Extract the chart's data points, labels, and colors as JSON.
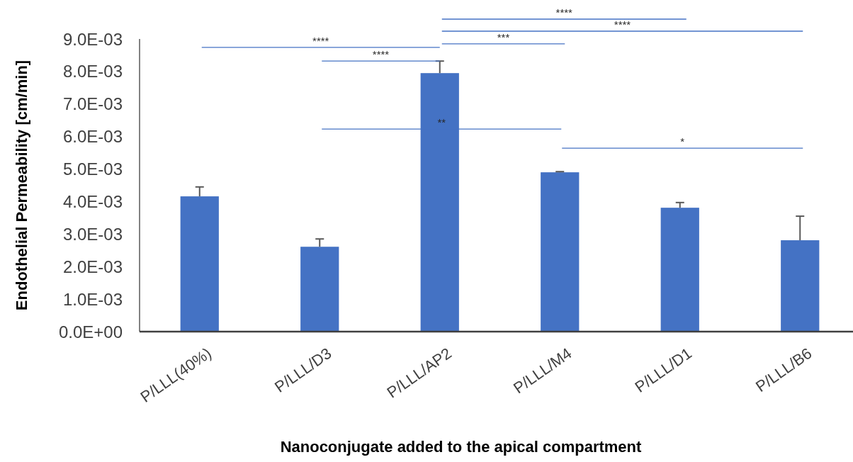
{
  "chart_data": {
    "type": "bar",
    "xlabel": "Nanoconjugate added to the apical compartment",
    "ylabel": "Endothelial Permeability [cm/min]",
    "categories": [
      "P/LLL(40%)",
      "P/LLL/D3",
      "P/LLL/AP2",
      "P/LLL/M4",
      "P/LLL/D1",
      "P/LLL/B6"
    ],
    "values": [
      0.00416,
      0.00261,
      0.00795,
      0.0049,
      0.00381,
      0.00281
    ],
    "errors": [
      0.00029,
      0.00024,
      0.00037,
      2e-05,
      0.00016,
      0.00074
    ],
    "color": "#4472c4",
    "ylim": [
      0,
      0.009
    ],
    "yticks": [
      {
        "value": 0,
        "label": "0.0E+00"
      },
      {
        "value": 0.001,
        "label": "1.0E-03"
      },
      {
        "value": 0.002,
        "label": "2.0E-03"
      },
      {
        "value": 0.003,
        "label": "3.0E-03"
      },
      {
        "value": 0.004,
        "label": "4.0E-03"
      },
      {
        "value": 0.005,
        "label": "5.0E-03"
      },
      {
        "value": 0.006,
        "label": "6.0E-03"
      },
      {
        "value": 0.007,
        "label": "7.0E-03"
      },
      {
        "value": 0.008,
        "label": "8.0E-03"
      },
      {
        "value": 0.009,
        "label": "9.0E-03"
      }
    ],
    "annotations": [
      "****",
      "****",
      "***",
      "****",
      "****",
      "**",
      "*"
    ],
    "grid": false
  }
}
